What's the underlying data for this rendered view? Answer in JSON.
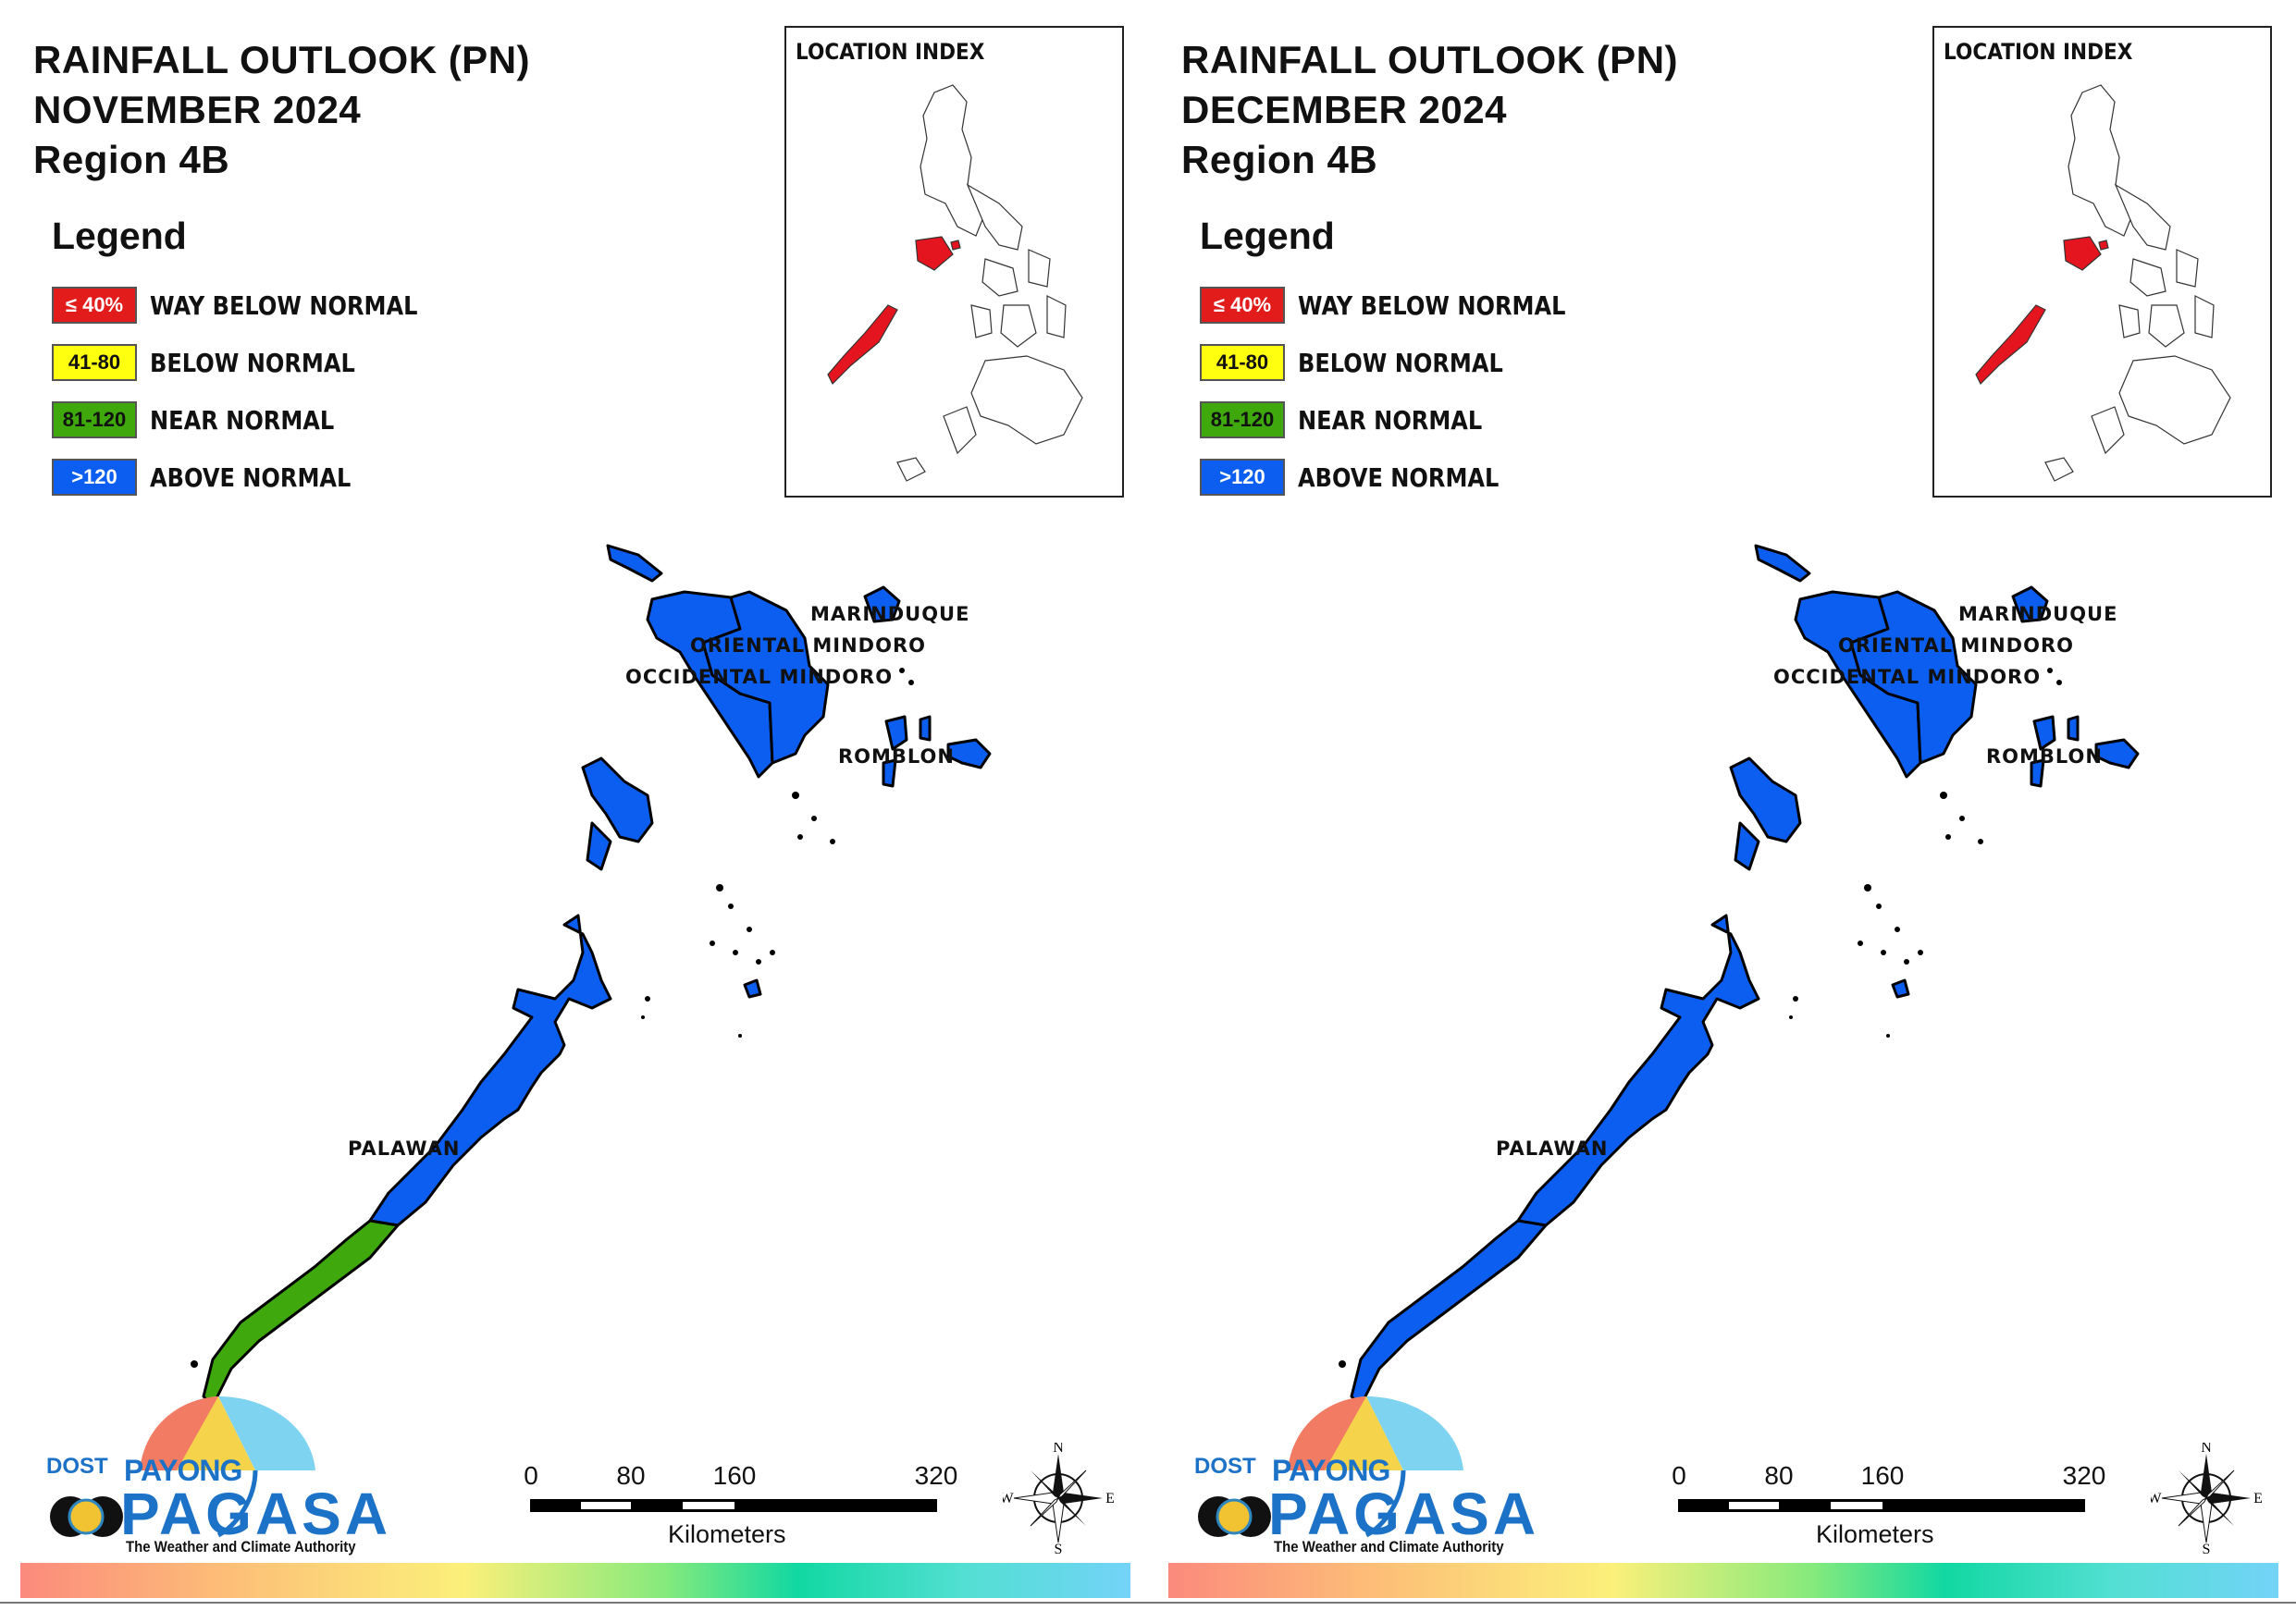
{
  "colors": {
    "way_below": "#e21b1b",
    "below": "#ffff10",
    "near": "#3ea80c",
    "above": "#0b5ef0",
    "index_highlight": "#e4151f"
  },
  "panels": [
    {
      "title_line1": "RAINFALL OUTLOOK (PN)",
      "title_line2": "NOVEMBER 2024",
      "title_line3": "Region 4B",
      "legend_title": "Legend",
      "legend": [
        {
          "range": "≤ 40%",
          "label": "WAY BELOW NORMAL"
        },
        {
          "range": "41-80",
          "label": "BELOW NORMAL"
        },
        {
          "range": "81-120",
          "label": "NEAR NORMAL"
        },
        {
          "range": ">120",
          "label": "ABOVE NORMAL"
        }
      ],
      "location_index_label": "LOCATION INDEX",
      "provinces": {
        "marinduque": {
          "name": "MARINDUQUE",
          "category": "above"
        },
        "oriental_mindoro": {
          "name": "ORIENTAL MINDORO",
          "category": "above"
        },
        "occidental_mindoro": {
          "name": "OCCIDENTAL MINDORO",
          "category": "above"
        },
        "romblon": {
          "name": "ROMBLON",
          "category": "above"
        },
        "palawan": {
          "name": "PALAWAN",
          "category": "above",
          "south_category": "near"
        }
      },
      "scale": {
        "ticks": [
          "0",
          "80",
          "160",
          "320"
        ],
        "unit": "Kilometers"
      },
      "compass": {
        "n": "N",
        "s": "S",
        "e": "E",
        "w": "W"
      },
      "logo": {
        "dost": "DOST",
        "payong": "PAYONG",
        "pagasa": "PAGASA",
        "tagline": "The Weather and Climate Authority"
      }
    },
    {
      "title_line1": "RAINFALL OUTLOOK (PN)",
      "title_line2": "DECEMBER 2024",
      "title_line3": "Region 4B",
      "legend_title": "Legend",
      "legend": [
        {
          "range": "≤ 40%",
          "label": "WAY BELOW NORMAL"
        },
        {
          "range": "41-80",
          "label": "BELOW NORMAL"
        },
        {
          "range": "81-120",
          "label": "NEAR NORMAL"
        },
        {
          "range": ">120",
          "label": "ABOVE NORMAL"
        }
      ],
      "location_index_label": "LOCATION INDEX",
      "provinces": {
        "marinduque": {
          "name": "MARINDUQUE",
          "category": "above"
        },
        "oriental_mindoro": {
          "name": "ORIENTAL MINDORO",
          "category": "above"
        },
        "occidental_mindoro": {
          "name": "OCCIDENTAL MINDORO",
          "category": "above"
        },
        "romblon": {
          "name": "ROMBLON",
          "category": "above"
        },
        "palawan": {
          "name": "PALAWAN",
          "category": "above",
          "south_category": "above"
        }
      },
      "scale": {
        "ticks": [
          "0",
          "80",
          "160",
          "320"
        ],
        "unit": "Kilometers"
      },
      "compass": {
        "n": "N",
        "s": "S",
        "e": "E",
        "w": "W"
      },
      "logo": {
        "dost": "DOST",
        "payong": "PAYONG",
        "pagasa": "PAGASA",
        "tagline": "The Weather and Climate Authority"
      }
    }
  ]
}
